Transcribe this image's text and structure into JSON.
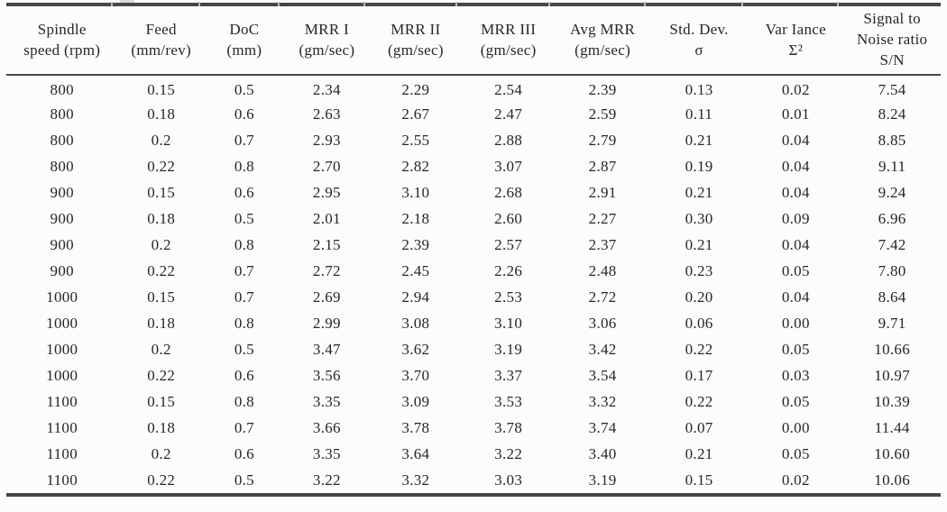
{
  "page": {
    "background": "#fcfcfc",
    "text_color": "#262626",
    "rule_color": "#474747"
  },
  "table": {
    "description": "Experimental results table: material removal rate (MRR) trials with statistics and signal-to-noise ratio",
    "columns": [
      {
        "id": "spindle_speed",
        "lines": [
          "Spindle",
          "speed (rpm)"
        ]
      },
      {
        "id": "feed",
        "lines": [
          "Feed",
          "(mm/rev)"
        ]
      },
      {
        "id": "doc",
        "lines": [
          "DoC",
          "(mm)"
        ]
      },
      {
        "id": "mrr1",
        "lines": [
          "MRR I",
          "(gm/sec)"
        ]
      },
      {
        "id": "mrr2",
        "lines": [
          "MRR II",
          "(gm/sec)"
        ]
      },
      {
        "id": "mrr3",
        "lines": [
          "MRR III",
          "(gm/sec)"
        ]
      },
      {
        "id": "avg_mrr",
        "lines": [
          "Avg MRR",
          "(gm/sec)"
        ]
      },
      {
        "id": "std_dev",
        "lines": [
          "Std. Dev.",
          "σ"
        ]
      },
      {
        "id": "variance",
        "lines": [
          "Var Iance",
          "Σ²"
        ]
      },
      {
        "id": "sn_ratio",
        "lines": [
          "Signal to",
          "Noise ratio",
          "S/N"
        ]
      }
    ],
    "rows": [
      [
        "800",
        "0.15",
        "0.5",
        "2.34",
        "2.29",
        "2.54",
        "2.39",
        "0.13",
        "0.02",
        "7.54"
      ],
      [
        "800",
        "0.18",
        "0.6",
        "2.63",
        "2.67",
        "2.47",
        "2.59",
        "0.11",
        "0.01",
        "8.24"
      ],
      [
        "800",
        "0.2",
        "0.7",
        "2.93",
        "2.55",
        "2.88",
        "2.79",
        "0.21",
        "0.04",
        "8.85"
      ],
      [
        "800",
        "0.22",
        "0.8",
        "2.70",
        "2.82",
        "3.07",
        "2.87",
        "0.19",
        "0.04",
        "9.11"
      ],
      [
        "900",
        "0.15",
        "0.6",
        "2.95",
        "3.10",
        "2.68",
        "2.91",
        "0.21",
        "0.04",
        "9.24"
      ],
      [
        "900",
        "0.18",
        "0.5",
        "2.01",
        "2.18",
        "2.60",
        "2.27",
        "0.30",
        "0.09",
        "6.96"
      ],
      [
        "900",
        "0.2",
        "0.8",
        "2.15",
        "2.39",
        "2.57",
        "2.37",
        "0.21",
        "0.04",
        "7.42"
      ],
      [
        "900",
        "0.22",
        "0.7",
        "2.72",
        "2.45",
        "2.26",
        "2.48",
        "0.23",
        "0.05",
        "7.80"
      ],
      [
        "1000",
        "0.15",
        "0.7",
        "2.69",
        "2.94",
        "2.53",
        "2.72",
        "0.20",
        "0.04",
        "8.64"
      ],
      [
        "1000",
        "0.18",
        "0.8",
        "2.99",
        "3.08",
        "3.10",
        "3.06",
        "0.06",
        "0.00",
        "9.71"
      ],
      [
        "1000",
        "0.2",
        "0.5",
        "3.47",
        "3.62",
        "3.19",
        "3.42",
        "0.22",
        "0.05",
        "10.66"
      ],
      [
        "1000",
        "0.22",
        "0.6",
        "3.56",
        "3.70",
        "3.37",
        "3.54",
        "0.17",
        "0.03",
        "10.97"
      ],
      [
        "1100",
        "0.15",
        "0.8",
        "3.35",
        "3.09",
        "3.53",
        "3.32",
        "0.22",
        "0.05",
        "10.39"
      ],
      [
        "1100",
        "0.18",
        "0.7",
        "3.66",
        "3.78",
        "3.78",
        "3.74",
        "0.07",
        "0.00",
        "11.44"
      ],
      [
        "1100",
        "0.2",
        "0.6",
        "3.35",
        "3.64",
        "3.22",
        "3.40",
        "0.21",
        "0.05",
        "10.60"
      ],
      [
        "1100",
        "0.22",
        "0.5",
        "3.22",
        "3.32",
        "3.03",
        "3.19",
        "0.15",
        "0.02",
        "10.06"
      ]
    ]
  }
}
